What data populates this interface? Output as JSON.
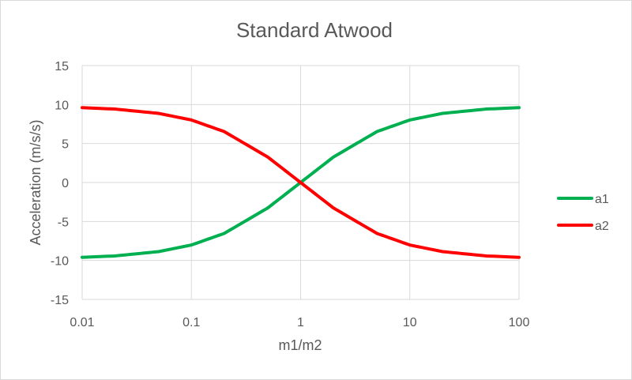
{
  "chart_data": {
    "type": "line",
    "title": "Standard Atwood",
    "xlabel": "m1/m2",
    "ylabel": "Acceleration (m/s/s)",
    "x_scale": "log",
    "xlim": [
      0.01,
      100
    ],
    "ylim": [
      -15,
      15
    ],
    "x_ticks": [
      "0.01",
      "0.1",
      "1",
      "10",
      "100"
    ],
    "y_ticks": [
      "15",
      "10",
      "5",
      "0",
      "-5",
      "-10",
      "-15"
    ],
    "grid": true,
    "legend_position": "right",
    "x": [
      0.01,
      0.02,
      0.05,
      0.1,
      0.2,
      0.5,
      1,
      2,
      5,
      10,
      20,
      50,
      100
    ],
    "series": [
      {
        "name": "a1",
        "color": "#00b050",
        "values": [
          -9.6,
          -9.42,
          -8.87,
          -8.02,
          -6.53,
          -3.27,
          0,
          3.27,
          6.53,
          8.02,
          8.87,
          9.42,
          9.6
        ]
      },
      {
        "name": "a2",
        "color": "#ff0000",
        "values": [
          9.6,
          9.42,
          8.87,
          8.02,
          6.53,
          3.27,
          0,
          -3.27,
          -6.53,
          -8.02,
          -8.87,
          -9.42,
          -9.6
        ]
      }
    ]
  }
}
